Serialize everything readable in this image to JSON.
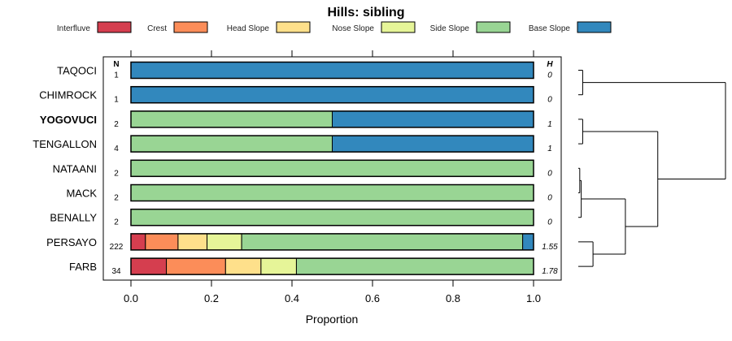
{
  "chart_data": {
    "type": "bar",
    "orientation": "horizontal",
    "stacked": true,
    "title": "Hills: sibling",
    "xlabel": "Proportion",
    "ylabel": "",
    "xlim": [
      0,
      1
    ],
    "xticks": [
      0.0,
      0.2,
      0.4,
      0.6,
      0.8,
      1.0
    ],
    "xtick_labels": [
      "0.0",
      "0.2",
      "0.4",
      "0.6",
      "0.8",
      "1.0"
    ],
    "n_header": "N",
    "h_header": "H",
    "legend_position": "top",
    "series": [
      {
        "name": "Interfluve",
        "color": "#d53e4f"
      },
      {
        "name": "Crest",
        "color": "#fc8d59"
      },
      {
        "name": "Head Slope",
        "color": "#fee08b"
      },
      {
        "name": "Nose Slope",
        "color": "#e6f598"
      },
      {
        "name": "Side Slope",
        "color": "#99d594"
      },
      {
        "name": "Base Slope",
        "color": "#3288bd"
      }
    ],
    "rows": [
      {
        "label": "TAQOCI",
        "bold": false,
        "n": "1",
        "h": "0",
        "values": [
          0,
          0,
          0,
          0,
          0,
          1.0
        ]
      },
      {
        "label": "CHIMROCK",
        "bold": false,
        "n": "1",
        "h": "0",
        "values": [
          0,
          0,
          0,
          0,
          0,
          1.0
        ]
      },
      {
        "label": "YOGOVUCI",
        "bold": true,
        "n": "2",
        "h": "1",
        "values": [
          0,
          0,
          0,
          0,
          0.5,
          0.5
        ]
      },
      {
        "label": "TENGALLON",
        "bold": false,
        "n": "4",
        "h": "1",
        "values": [
          0,
          0,
          0,
          0,
          0.5,
          0.5
        ]
      },
      {
        "label": "NATAANI",
        "bold": false,
        "n": "2",
        "h": "0",
        "values": [
          0,
          0,
          0,
          0,
          1.0,
          0
        ]
      },
      {
        "label": "MACK",
        "bold": false,
        "n": "2",
        "h": "0",
        "values": [
          0,
          0,
          0,
          0,
          1.0,
          0
        ]
      },
      {
        "label": "BENALLY",
        "bold": false,
        "n": "2",
        "h": "0",
        "values": [
          0,
          0,
          0,
          0,
          1.0,
          0
        ]
      },
      {
        "label": "PERSAYO",
        "bold": false,
        "n": "222",
        "h": "1.55",
        "values": [
          0.036,
          0.081,
          0.072,
          0.086,
          0.698,
          0.027
        ]
      },
      {
        "label": "FARB",
        "bold": false,
        "n": "34",
        "h": "1.78",
        "values": [
          0.088,
          0.147,
          0.088,
          0.088,
          0.589,
          0
        ]
      }
    ],
    "dendrogram": {
      "leaf_order": [
        "TAQOCI",
        "CHIMROCK",
        "YOGOVUCI",
        "TENGALLON",
        "NATAANI",
        "MACK",
        "BENALLY",
        "PERSAYO",
        "FARB"
      ],
      "merges": [
        {
          "id": "m1",
          "left": "NATAANI",
          "right": "MACK",
          "height": 0.01
        },
        {
          "id": "m2",
          "left": "m1",
          "right": "BENALLY",
          "height": 0.02
        },
        {
          "id": "m3",
          "left": "TAQOCI",
          "right": "CHIMROCK",
          "height": 0.03
        },
        {
          "id": "m4",
          "left": "YOGOVUCI",
          "right": "TENGALLON",
          "height": 0.03
        },
        {
          "id": "m5",
          "left": "PERSAYO",
          "right": "FARB",
          "height": 0.1
        },
        {
          "id": "m6",
          "left": "m2",
          "right": "m5",
          "height": 0.32
        },
        {
          "id": "m7",
          "left": "m4",
          "right": "m6",
          "height": 0.54
        },
        {
          "id": "m8",
          "left": "m3",
          "right": "m7",
          "height": 1.0
        }
      ]
    }
  }
}
